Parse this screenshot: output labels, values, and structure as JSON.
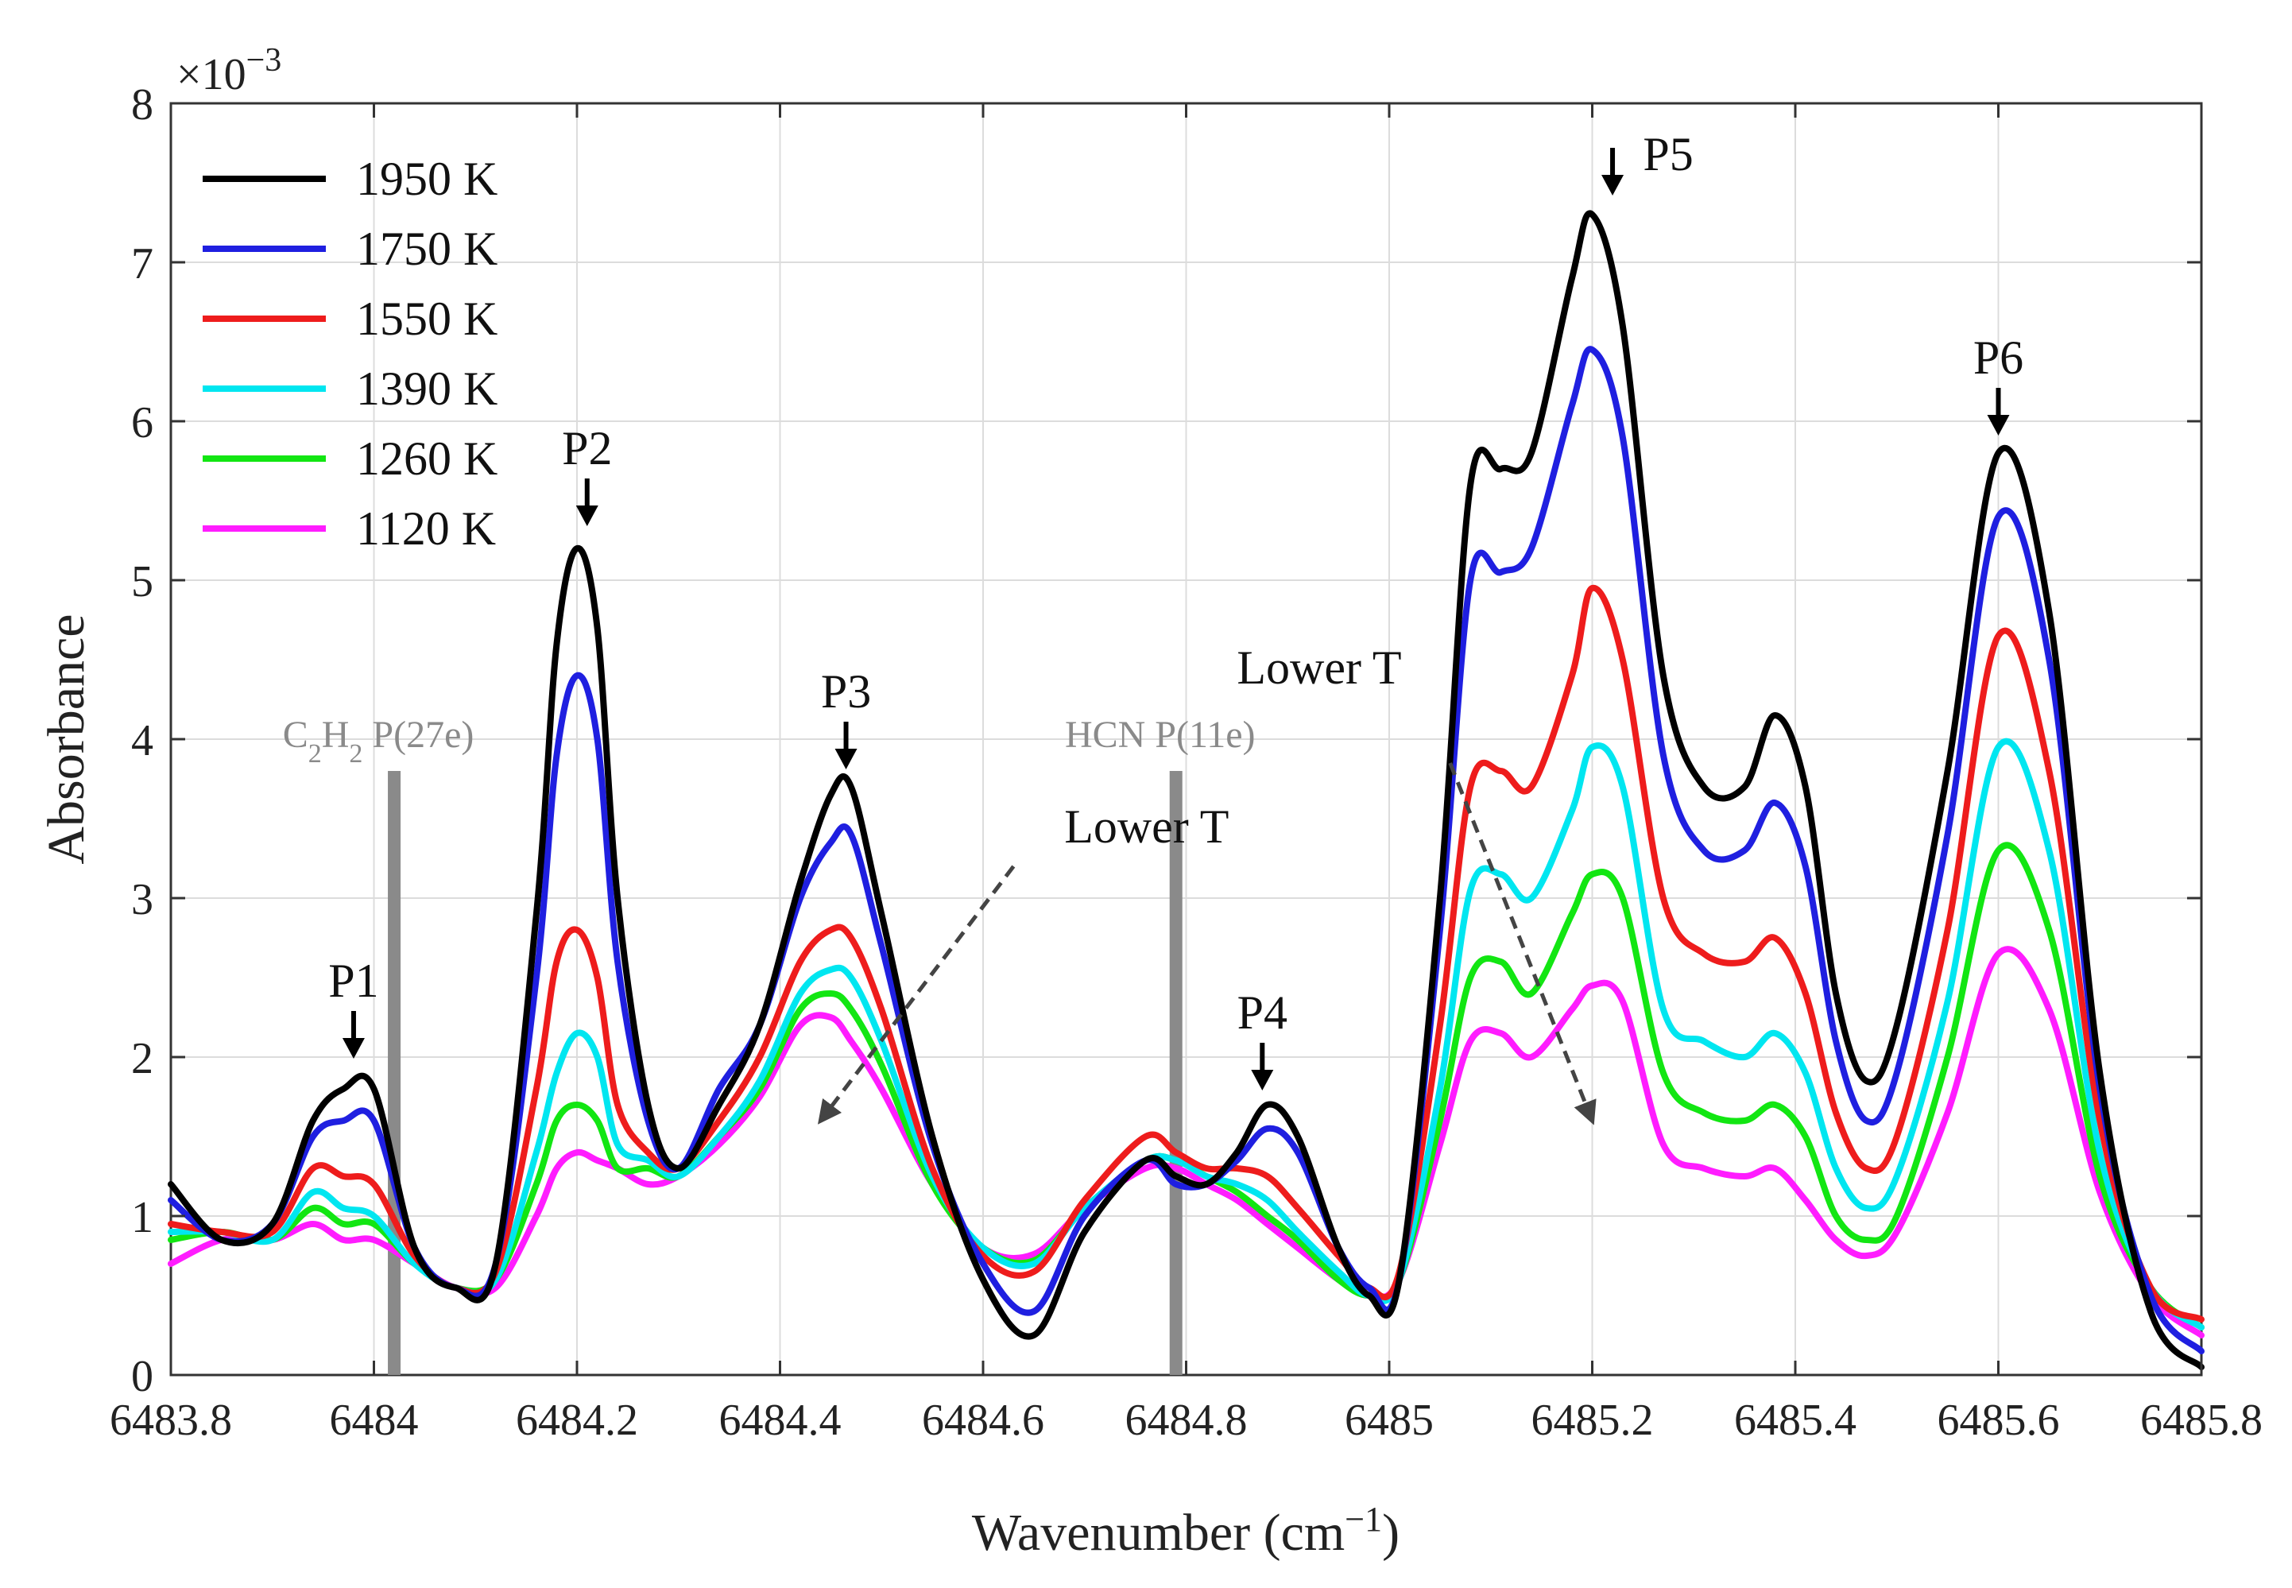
{
  "chart_data": {
    "type": "line",
    "xlabel": "Wavenumber (cm",
    "xlabel_sup": "−1",
    "xlabel_end": ")",
    "ylabel": "Absorbance",
    "y_multiplier": "×10",
    "y_multiplier_exp": "−3",
    "xlim": [
      6483.8,
      6485.8
    ],
    "ylim": [
      0,
      8
    ],
    "grid": true,
    "legend_position": "top-left",
    "x_ticks": [
      6483.8,
      6484.0,
      6484.2,
      6484.4,
      6484.6,
      6484.8,
      6485.0,
      6485.2,
      6485.4,
      6485.6,
      6485.8
    ],
    "x_tick_labels": [
      "6483.8",
      "6484",
      "6484.2",
      "6484.4",
      "6484.6",
      "6484.8",
      "6485",
      "6485.2",
      "6485.4",
      "6485.6",
      "6485.8"
    ],
    "y_ticks": [
      0,
      1,
      2,
      3,
      4,
      5,
      6,
      7,
      8
    ],
    "y_tick_labels": [
      "0",
      "1",
      "2",
      "3",
      "4",
      "5",
      "6",
      "7",
      "8"
    ],
    "x": [
      6483.8,
      6483.85,
      6483.9,
      6483.94,
      6483.97,
      6484.0,
      6484.04,
      6484.08,
      6484.12,
      6484.16,
      6484.18,
      6484.2,
      6484.22,
      6484.24,
      6484.27,
      6484.3,
      6484.34,
      6484.38,
      6484.42,
      6484.45,
      6484.47,
      6484.5,
      6484.55,
      6484.6,
      6484.65,
      6484.7,
      6484.76,
      6484.79,
      6484.82,
      6484.85,
      6484.88,
      6484.91,
      6484.95,
      6484.98,
      6485.01,
      6485.05,
      6485.08,
      6485.11,
      6485.14,
      6485.18,
      6485.2,
      6485.23,
      6485.27,
      6485.31,
      6485.35,
      6485.38,
      6485.41,
      6485.44,
      6485.47,
      6485.5,
      6485.55,
      6485.6,
      6485.65,
      6485.7,
      6485.75,
      6485.8
    ],
    "series": [
      {
        "name": "1950 K",
        "color": "#000000",
        "values": [
          1.2,
          0.85,
          0.95,
          1.6,
          1.8,
          1.8,
          0.8,
          0.55,
          0.7,
          2.9,
          4.6,
          5.2,
          4.7,
          3.0,
          1.7,
          1.3,
          1.7,
          2.2,
          3.1,
          3.65,
          3.7,
          2.9,
          1.5,
          0.6,
          0.25,
          0.9,
          1.35,
          1.25,
          1.2,
          1.4,
          1.7,
          1.5,
          0.8,
          0.5,
          0.6,
          3.0,
          5.6,
          5.7,
          5.8,
          6.9,
          7.3,
          6.6,
          4.4,
          3.7,
          3.7,
          4.15,
          3.7,
          2.4,
          1.85,
          2.2,
          3.8,
          5.8,
          4.8,
          1.9,
          0.4,
          0.05
        ]
      },
      {
        "name": "1750 K",
        "color": "#1f1fe0",
        "values": [
          1.1,
          0.85,
          0.95,
          1.5,
          1.6,
          1.6,
          0.8,
          0.55,
          0.7,
          2.5,
          3.9,
          4.4,
          4.0,
          2.6,
          1.6,
          1.3,
          1.8,
          2.2,
          3.0,
          3.35,
          3.4,
          2.7,
          1.45,
          0.7,
          0.4,
          1.0,
          1.35,
          1.2,
          1.2,
          1.35,
          1.55,
          1.4,
          0.8,
          0.55,
          0.6,
          2.8,
          5.0,
          5.05,
          5.2,
          6.1,
          6.45,
          5.9,
          3.9,
          3.3,
          3.3,
          3.6,
          3.2,
          2.1,
          1.6,
          1.9,
          3.4,
          5.4,
          4.5,
          1.8,
          0.5,
          0.15
        ]
      },
      {
        "name": "1550 K",
        "color": "#ee1c1c",
        "values": [
          0.95,
          0.9,
          0.9,
          1.3,
          1.25,
          1.2,
          0.75,
          0.55,
          0.65,
          1.8,
          2.6,
          2.8,
          2.5,
          1.7,
          1.4,
          1.3,
          1.6,
          2.0,
          2.6,
          2.8,
          2.75,
          2.3,
          1.3,
          0.75,
          0.65,
          1.1,
          1.5,
          1.4,
          1.3,
          1.3,
          1.25,
          1.05,
          0.75,
          0.55,
          0.65,
          2.2,
          3.7,
          3.8,
          3.7,
          4.4,
          4.95,
          4.5,
          3.0,
          2.65,
          2.6,
          2.75,
          2.4,
          1.65,
          1.3,
          1.5,
          2.8,
          4.65,
          3.8,
          1.6,
          0.55,
          0.35
        ]
      },
      {
        "name": "1390 K",
        "color": "#00e6f0",
        "values": [
          0.9,
          0.9,
          0.85,
          1.15,
          1.05,
          1.0,
          0.7,
          0.55,
          0.6,
          1.4,
          1.9,
          2.15,
          2.0,
          1.45,
          1.35,
          1.25,
          1.5,
          1.85,
          2.4,
          2.55,
          2.5,
          2.1,
          1.25,
          0.8,
          0.7,
          1.05,
          1.35,
          1.35,
          1.25,
          1.2,
          1.1,
          0.9,
          0.65,
          0.5,
          0.6,
          1.8,
          3.05,
          3.15,
          3.0,
          3.55,
          3.95,
          3.7,
          2.3,
          2.1,
          2.0,
          2.15,
          1.9,
          1.3,
          1.05,
          1.25,
          2.35,
          3.95,
          3.3,
          1.4,
          0.55,
          0.3
        ]
      },
      {
        "name": "1260 K",
        "color": "#12e612",
        "values": [
          0.85,
          0.9,
          0.85,
          1.05,
          0.95,
          0.95,
          0.7,
          0.55,
          0.6,
          1.2,
          1.6,
          1.7,
          1.6,
          1.3,
          1.3,
          1.25,
          1.5,
          1.8,
          2.3,
          2.4,
          2.3,
          1.95,
          1.2,
          0.8,
          0.72,
          1.05,
          1.35,
          1.35,
          1.25,
          1.15,
          1.0,
          0.85,
          0.6,
          0.5,
          0.6,
          1.6,
          2.5,
          2.6,
          2.4,
          2.9,
          3.15,
          3.0,
          1.9,
          1.65,
          1.6,
          1.7,
          1.5,
          1.0,
          0.85,
          1.0,
          2.0,
          3.3,
          2.8,
          1.25,
          0.55,
          0.3
        ]
      },
      {
        "name": "1120 K",
        "color": "#ff1cff",
        "values": [
          0.7,
          0.85,
          0.85,
          0.95,
          0.85,
          0.85,
          0.7,
          0.55,
          0.55,
          1.0,
          1.3,
          1.4,
          1.35,
          1.3,
          1.2,
          1.25,
          1.45,
          1.75,
          2.2,
          2.25,
          2.1,
          1.8,
          1.2,
          0.8,
          0.76,
          1.05,
          1.3,
          1.3,
          1.2,
          1.1,
          0.95,
          0.8,
          0.6,
          0.5,
          0.6,
          1.45,
          2.1,
          2.15,
          2.0,
          2.3,
          2.45,
          2.35,
          1.45,
          1.3,
          1.25,
          1.3,
          1.1,
          0.85,
          0.75,
          0.9,
          1.65,
          2.65,
          2.3,
          1.15,
          0.5,
          0.25
        ]
      }
    ],
    "reference_lines": [
      {
        "label_sub": "2",
        "x": 6484.02,
        "label_parts": [
          "C",
          "H",
          " P(27e)"
        ]
      },
      {
        "label": "HCN P(11e)",
        "x": 6484.79
      }
    ],
    "peaks": [
      {
        "label": "P1",
        "x": 6483.98,
        "y": 1.9
      },
      {
        "label": "P2",
        "x": 6484.21,
        "y": 5.25
      },
      {
        "label": "P3",
        "x": 6484.465,
        "y": 3.72
      },
      {
        "label": "P4",
        "x": 6484.875,
        "y": 1.7
      },
      {
        "label": "P5",
        "x": 6485.22,
        "y": 7.33
      },
      {
        "label": "P6",
        "x": 6485.6,
        "y": 5.82
      }
    ],
    "annotations": [
      {
        "text": "Lower T",
        "text_x": 6484.68,
        "text_y": 3.35,
        "arrow_from": [
          6484.63,
          3.2
        ],
        "arrow_to": [
          6484.44,
          1.6
        ]
      },
      {
        "text": "Lower T",
        "text_x": 6484.85,
        "text_y": 4.35,
        "arrow_from": [
          6485.06,
          3.85
        ],
        "arrow_to": [
          6485.2,
          1.6
        ]
      }
    ]
  }
}
